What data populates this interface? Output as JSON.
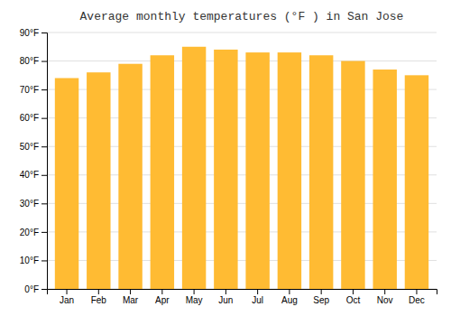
{
  "chart_data": {
    "type": "bar",
    "title": "Average monthly temperatures (°F ) in San Jose",
    "categories": [
      "Jan",
      "Feb",
      "Mar",
      "Apr",
      "May",
      "Jun",
      "Jul",
      "Aug",
      "Sep",
      "Oct",
      "Nov",
      "Dec"
    ],
    "values": [
      74,
      76,
      79,
      82,
      85,
      84,
      83,
      83,
      82,
      80,
      77,
      75
    ],
    "color": "#FFBB33",
    "ylim": [
      0,
      90
    ],
    "yticks": [
      {
        "value": 0,
        "label": "0°F"
      },
      {
        "value": 10,
        "label": "10°F"
      },
      {
        "value": 20,
        "label": "20°F"
      },
      {
        "value": 30,
        "label": "30°F"
      },
      {
        "value": 40,
        "label": "40°F"
      },
      {
        "value": 50,
        "label": "50°F"
      },
      {
        "value": 60,
        "label": "60°F"
      },
      {
        "value": 70,
        "label": "70°F"
      },
      {
        "value": 80,
        "label": "80°F"
      },
      {
        "value": 90,
        "label": "90°F"
      }
    ],
    "grid": true
  }
}
